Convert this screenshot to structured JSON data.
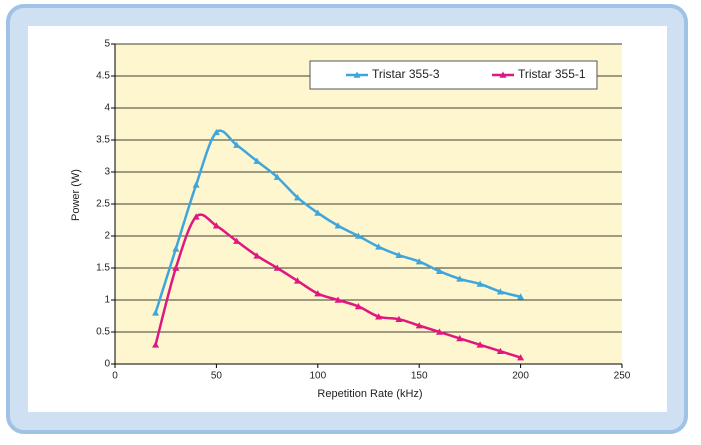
{
  "chart_data": {
    "type": "line",
    "x_label": "Repetition Rate (kHz)",
    "y_label": "Power (W)",
    "x": [
      20,
      30,
      40,
      50,
      60,
      70,
      80,
      90,
      100,
      110,
      120,
      130,
      140,
      150,
      160,
      170,
      180,
      190,
      200
    ],
    "series": [
      {
        "name": "Tristar 355-3",
        "color": "#3ea6dc",
        "values": [
          0.8,
          1.8,
          2.8,
          3.62,
          3.42,
          3.17,
          2.92,
          2.6,
          2.36,
          2.16,
          2.0,
          1.83,
          1.7,
          1.6,
          1.45,
          1.33,
          1.25,
          1.13,
          1.05
        ]
      },
      {
        "name": "Tristar 355-1",
        "color": "#e0177e",
        "values": [
          0.3,
          1.5,
          2.3,
          2.16,
          1.92,
          1.69,
          1.5,
          1.3,
          1.1,
          1.0,
          0.9,
          0.74,
          0.7,
          0.6,
          0.5,
          0.4,
          0.3,
          0.2,
          0.1
        ]
      }
    ],
    "xlim": [
      0,
      250
    ],
    "xticks": [
      0,
      50,
      100,
      150,
      200,
      250
    ],
    "ylim": [
      0,
      5
    ],
    "yticks": [
      0,
      0.5,
      1,
      1.5,
      2,
      2.5,
      3,
      3.5,
      4,
      4.5,
      5
    ],
    "grid": true,
    "legend": "top-right"
  }
}
